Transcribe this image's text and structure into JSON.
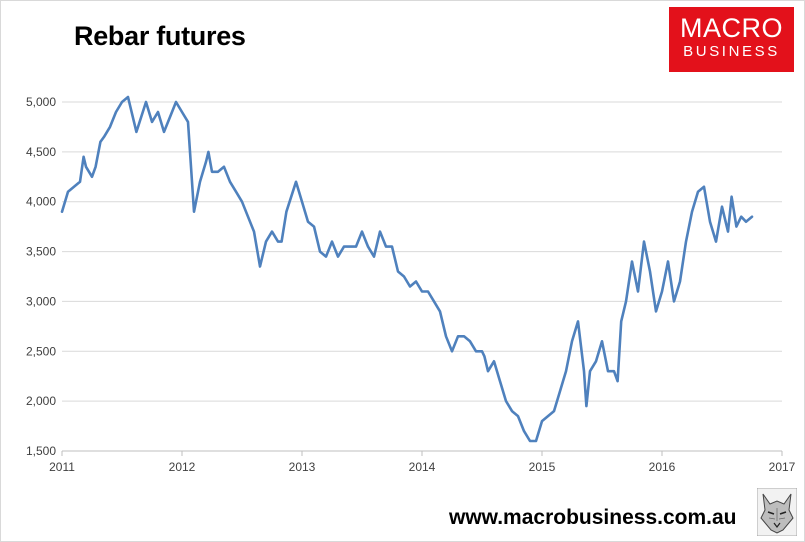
{
  "chart_data": {
    "type": "line",
    "title": "Rebar futures",
    "xlabel": "",
    "ylabel": "",
    "xlim": [
      2011,
      2017
    ],
    "ylim": [
      1500,
      5000
    ],
    "x_ticks": [
      "2011",
      "2012",
      "2013",
      "2014",
      "2015",
      "2016",
      "2017"
    ],
    "y_ticks": [
      "1,500",
      "2,000",
      "2,500",
      "3,000",
      "3,500",
      "4,000",
      "4,500",
      "5,000"
    ],
    "grid": "horizontal",
    "legend": "none",
    "series": [
      {
        "color": "#4f81bd",
        "x": [
          2011.0,
          2011.05,
          2011.1,
          2011.15,
          2011.18,
          2011.2,
          2011.25,
          2011.28,
          2011.32,
          2011.35,
          2011.4,
          2011.45,
          2011.5,
          2011.55,
          2011.6,
          2011.62,
          2011.66,
          2011.7,
          2011.75,
          2011.8,
          2011.85,
          2011.9,
          2011.95,
          2012.0,
          2012.05,
          2012.1,
          2012.15,
          2012.2,
          2012.22,
          2012.25,
          2012.3,
          2012.35,
          2012.4,
          2012.45,
          2012.5,
          2012.55,
          2012.6,
          2012.65,
          2012.7,
          2012.75,
          2012.8,
          2012.83,
          2012.87,
          2012.95,
          2013.0,
          2013.05,
          2013.1,
          2013.15,
          2013.2,
          2013.25,
          2013.3,
          2013.35,
          2013.4,
          2013.45,
          2013.5,
          2013.55,
          2013.6,
          2013.65,
          2013.7,
          2013.75,
          2013.8,
          2013.85,
          2013.9,
          2013.95,
          2014.0,
          2014.05,
          2014.1,
          2014.15,
          2014.2,
          2014.25,
          2014.3,
          2014.35,
          2014.4,
          2014.45,
          2014.5,
          2014.52,
          2014.55,
          2014.6,
          2014.65,
          2014.7,
          2014.75,
          2014.8,
          2014.85,
          2014.9,
          2014.95,
          2015.0,
          2015.05,
          2015.1,
          2015.15,
          2015.2,
          2015.25,
          2015.3,
          2015.35,
          2015.37,
          2015.4,
          2015.45,
          2015.5,
          2015.55,
          2015.6,
          2015.63,
          2015.66,
          2015.7,
          2015.75,
          2015.8,
          2015.85,
          2015.9,
          2015.95,
          2016.0,
          2016.05,
          2016.1,
          2016.15,
          2016.2,
          2016.25,
          2016.3,
          2016.35,
          2016.4,
          2016.45,
          2016.5,
          2016.55,
          2016.58,
          2016.62,
          2016.66,
          2016.7,
          2016.75
        ],
        "values": [
          3900,
          4100,
          4150,
          4200,
          4450,
          4350,
          4250,
          4350,
          4600,
          4650,
          4750,
          4900,
          5000,
          5050,
          4800,
          4700,
          4850,
          5000,
          4800,
          4900,
          4700,
          4850,
          5000,
          4900,
          4800,
          3900,
          4200,
          4400,
          4500,
          4300,
          4300,
          4350,
          4200,
          4100,
          4000,
          3850,
          3700,
          3350,
          3600,
          3700,
          3600,
          3600,
          3900,
          4200,
          4000,
          3800,
          3750,
          3500,
          3450,
          3600,
          3450,
          3550,
          3550,
          3550,
          3700,
          3550,
          3450,
          3700,
          3550,
          3550,
          3300,
          3250,
          3150,
          3200,
          3100,
          3100,
          3000,
          2900,
          2650,
          2500,
          2650,
          2650,
          2600,
          2500,
          2500,
          2450,
          2300,
          2400,
          2200,
          2000,
          1900,
          1850,
          1700,
          1600,
          1600,
          1800,
          1850,
          1900,
          2100,
          2300,
          2600,
          2800,
          2300,
          1950,
          2300,
          2400,
          2600,
          2300,
          2300,
          2200,
          2800,
          3000,
          3400,
          3100,
          3600,
          3300,
          2900,
          3100,
          3400,
          3000,
          3200,
          3600,
          3900,
          4100,
          4150,
          3800,
          3600,
          3950,
          3700,
          4050,
          3750,
          3850,
          3800,
          3850
        ]
      }
    ]
  },
  "header": {
    "title": "Rebar futures",
    "logo_line1": "MACRO",
    "logo_line2": "BUSINESS"
  },
  "footer": {
    "url": "www.macrobusiness.com.au"
  },
  "icons": {
    "wolf": "wolf-logo-icon"
  }
}
